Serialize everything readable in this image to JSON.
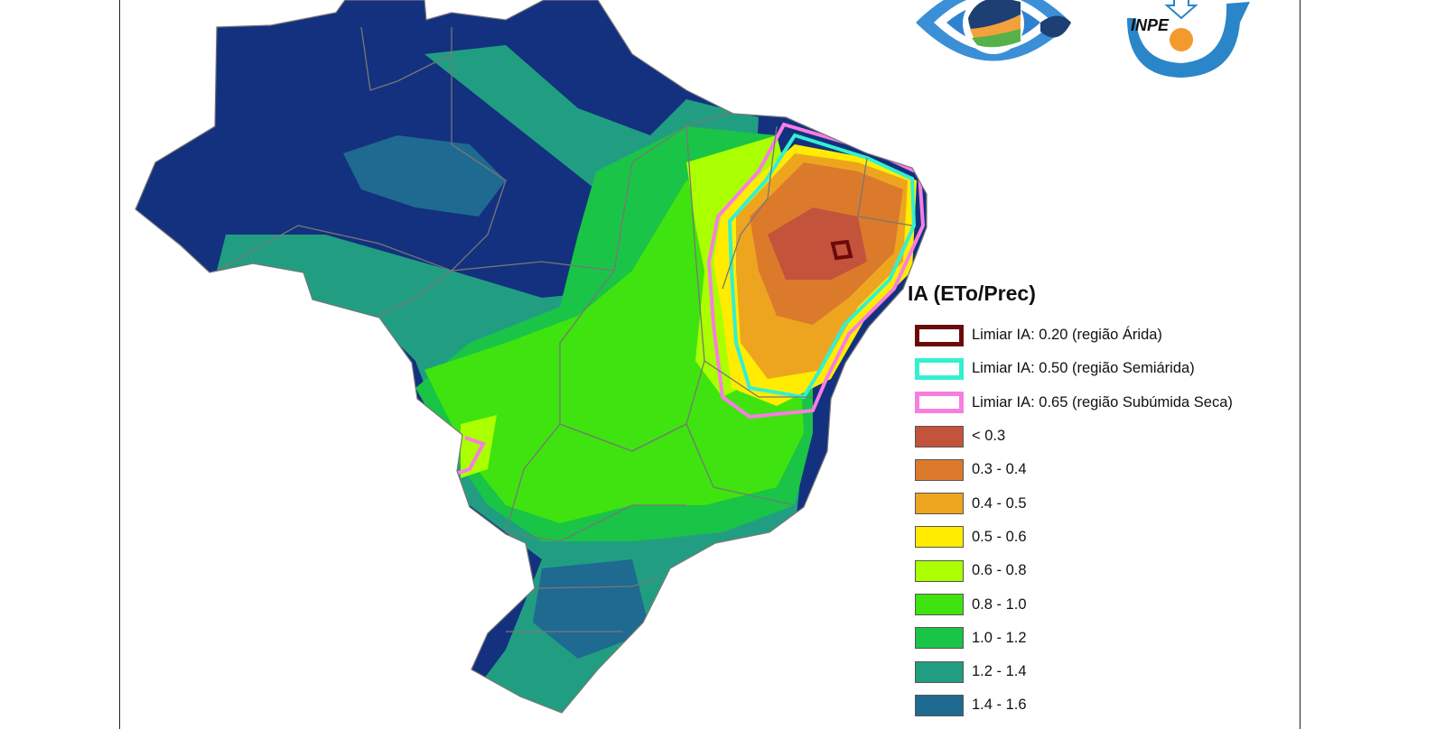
{
  "logos": {
    "cptec": {
      "name": "CPTEC eye logo"
    },
    "inpe": {
      "text": "INPE"
    }
  },
  "legend": {
    "title": "IA (ETo/Prec)",
    "thresholds": [
      {
        "label": "Limiar IA: 0.20 (região Árida)",
        "color": "#6b0a0a"
      },
      {
        "label": "Limiar IA: 0.50 (região Semiárida)",
        "color": "#33f0d0"
      },
      {
        "label": "Limiar IA: 0.65 (região Subúmida Seca)",
        "color": "#f77ee0"
      }
    ],
    "classes": [
      {
        "label": "< 0.3",
        "color": "#c4533c"
      },
      {
        "label": "0.3 - 0.4",
        "color": "#dc7a2c"
      },
      {
        "label": "0.4 - 0.5",
        "color": "#eda520"
      },
      {
        "label": "0.5 - 0.6",
        "color": "#ffec00"
      },
      {
        "label": "0.6 - 0.8",
        "color": "#aaff00"
      },
      {
        "label": "0.8 - 1.0",
        "color": "#3fe30f"
      },
      {
        "label": "1.0 - 1.2",
        "color": "#19c446"
      },
      {
        "label": "1.2 - 1.4",
        "color": "#219e82"
      },
      {
        "label": "1.4 - 1.6",
        "color": "#1f6a90"
      }
    ]
  },
  "map": {
    "ocean_color": "#ffffff",
    "dominant_north_color": "#13317e",
    "border_color": "#777777"
  }
}
